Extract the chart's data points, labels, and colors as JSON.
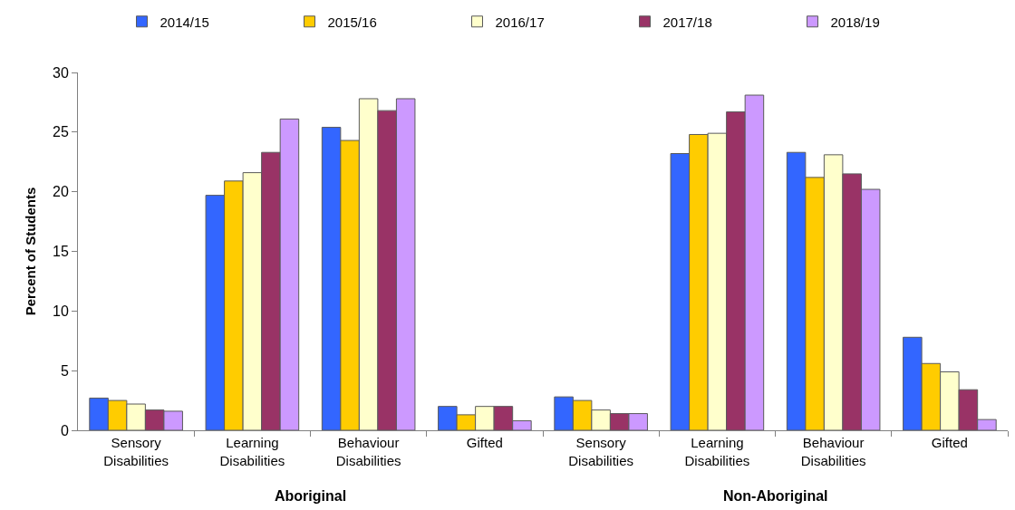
{
  "chart_data": {
    "type": "bar",
    "categories": [
      "Sensory Disabilities",
      "Learning Disabilities",
      "Behaviour Disabilities",
      "Gifted",
      "Sensory Disabilities",
      "Learning Disabilities",
      "Behaviour Disabilities",
      "Gifted"
    ],
    "series": [
      {
        "name": "2014/15",
        "color": "#3366ff",
        "values": [
          2.7,
          19.7,
          25.4,
          2.0,
          2.8,
          23.2,
          23.3,
          7.8
        ]
      },
      {
        "name": "2015/16",
        "color": "#ffcc00",
        "values": [
          2.5,
          20.9,
          24.3,
          1.3,
          2.5,
          24.8,
          21.2,
          5.6
        ]
      },
      {
        "name": "2016/17",
        "color": "#ffffcc",
        "values": [
          2.2,
          21.6,
          27.8,
          2.0,
          1.7,
          24.9,
          23.1,
          4.9
        ]
      },
      {
        "name": "2017/18",
        "color": "#993366",
        "values": [
          1.7,
          23.3,
          26.8,
          2.0,
          1.4,
          26.7,
          21.5,
          3.4
        ]
      },
      {
        "name": "2018/19",
        "color": "#cc99ff",
        "values": [
          1.6,
          26.1,
          27.8,
          0.8,
          1.4,
          28.1,
          20.2,
          0.9
        ]
      }
    ],
    "ylabel": "Percent of Students",
    "ylim": [
      0,
      30
    ],
    "yticks": [
      0,
      5,
      10,
      15,
      20,
      25,
      30
    ],
    "annotations": [
      "Aboriginal",
      "Non-Aboriginal"
    ],
    "legend": "top"
  }
}
